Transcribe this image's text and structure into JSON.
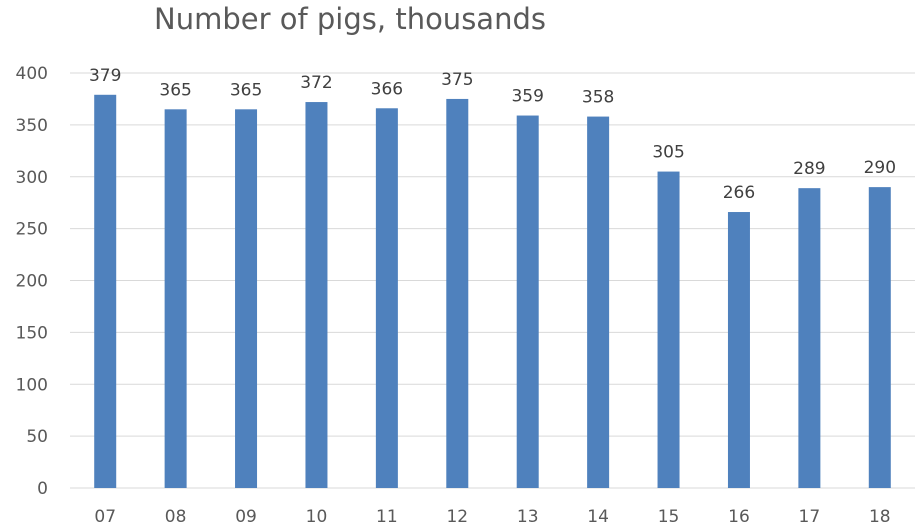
{
  "chart_data": {
    "type": "bar",
    "title": "Number of pigs, thousands",
    "categories": [
      "07",
      "08",
      "09",
      "10",
      "11",
      "12",
      "13",
      "14",
      "15",
      "16",
      "17",
      "18"
    ],
    "values": [
      379,
      365,
      365,
      372,
      366,
      375,
      359,
      358,
      305,
      266,
      289,
      290
    ],
    "xlabel": "",
    "ylabel": "",
    "ylim": [
      0,
      400
    ],
    "yticks": [
      "0",
      "50",
      "100",
      "150",
      "200",
      "250",
      "300",
      "350",
      "400"
    ],
    "grid": true,
    "legend": "none",
    "data_labels": true,
    "bar_color": "#4f81bd",
    "grid_color": "#d9d9d9"
  }
}
